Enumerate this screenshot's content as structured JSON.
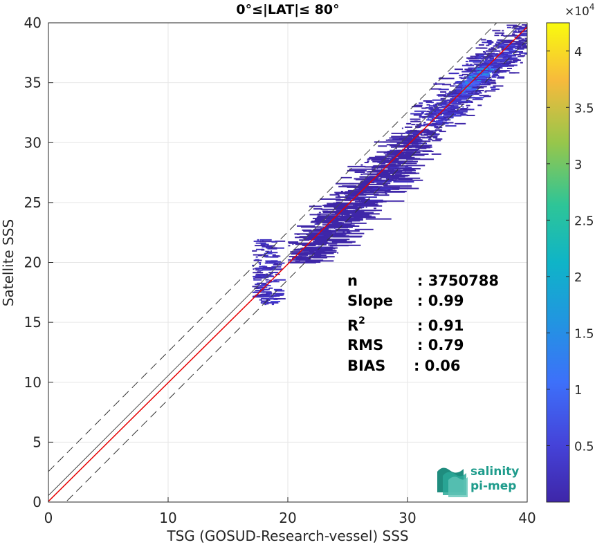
{
  "chart_data": {
    "type": "heatmap",
    "title": "0°≤|LAT|≤ 80°",
    "xlabel": "TSG (GOSUD-Research-vessel) SSS",
    "ylabel": "Satellite SSS",
    "xlim": [
      0,
      40
    ],
    "ylim": [
      0,
      40
    ],
    "xticks": [
      "0",
      "10",
      "20",
      "30",
      "40"
    ],
    "yticks": [
      "0",
      "5",
      "10",
      "15",
      "20",
      "25",
      "30",
      "35",
      "40"
    ],
    "grid": true,
    "colorbar": {
      "range": [
        0,
        42500
      ],
      "exponent_label": "×10",
      "exponent_power": "4",
      "ticks": [
        {
          "value": 5000,
          "label": "0.5"
        },
        {
          "value": 10000,
          "label": "1"
        },
        {
          "value": 15000,
          "label": "1.5"
        },
        {
          "value": 20000,
          "label": "2"
        },
        {
          "value": 25000,
          "label": "2.5"
        },
        {
          "value": 30000,
          "label": "3"
        },
        {
          "value": 35000,
          "label": "3.5"
        },
        {
          "value": 40000,
          "label": "4"
        }
      ]
    },
    "lines": [
      {
        "role": "regression",
        "color": "#e60000",
        "x": [
          0,
          40
        ],
        "y": [
          0.06,
          39.66
        ]
      },
      {
        "role": "identity",
        "color": "#4a4a4a",
        "x": [
          0,
          40
        ],
        "y": [
          0.55,
          40.55
        ]
      },
      {
        "role": "upper-bound",
        "color": "#333333",
        "dash": true,
        "x": [
          0,
          40
        ],
        "y": [
          2.55,
          42.55
        ]
      },
      {
        "role": "lower-bound",
        "color": "#333333",
        "dash": true,
        "x": [
          0,
          40
        ],
        "y": [
          -1.45,
          38.55
        ]
      }
    ],
    "density_clusters": [
      {
        "x": [
          29.5,
          40
        ],
        "y": [
          29,
          40
        ],
        "level": 0.12
      },
      {
        "x": [
          31.5,
          38.5
        ],
        "y": [
          31.5,
          38.5
        ],
        "level": 0.25
      },
      {
        "x": [
          34.5,
          36.5
        ],
        "y": [
          34,
          36.5
        ],
        "level": 0.55
      },
      {
        "x": [
          17,
          19
        ],
        "y": [
          16.5,
          22
        ],
        "level": 0.2
      },
      {
        "x": [
          20,
          30
        ],
        "y": [
          20,
          31
        ],
        "level": 0.1
      }
    ],
    "stats": [
      {
        "label": "n",
        "value": ": 3750788"
      },
      {
        "label": "Slope",
        "value": ": 0.99"
      },
      {
        "label": "R",
        "sup": "2",
        "value": ": 0.91"
      },
      {
        "label": "RMS",
        "value": ": 0.79"
      },
      {
        "label": "BIAS",
        "value": ": 0.06"
      }
    ]
  },
  "logo": {
    "line1": "salinity",
    "line2": "pi-mep"
  },
  "colors": {
    "viridis_low": "#3e26a8",
    "viridis_high": "#f9fb0e"
  }
}
